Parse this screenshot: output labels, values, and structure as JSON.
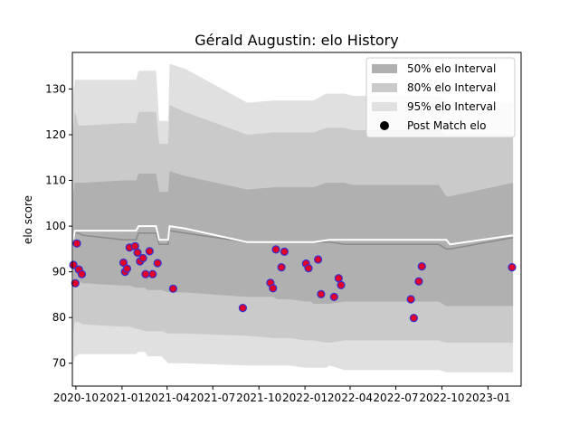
{
  "chart_data": {
    "type": "line",
    "title": "Gérald Augustin: elo History",
    "xlabel": "",
    "ylabel": "elo score",
    "ylim": [
      65,
      138
    ],
    "xlim": [
      "2020-09-24",
      "2023-03-08"
    ],
    "grid": false,
    "legend_position": "top-right",
    "x_ticks": [
      {
        "date": "2020-10-01",
        "label": "2020-10"
      },
      {
        "date": "2021-01-01",
        "label": "2021-01"
      },
      {
        "date": "2021-04-01",
        "label": "2021-04"
      },
      {
        "date": "2021-07-01",
        "label": "2021-07"
      },
      {
        "date": "2021-10-01",
        "label": "2021-10"
      },
      {
        "date": "2022-01-01",
        "label": "2022-01"
      },
      {
        "date": "2022-04-01",
        "label": "2022-04"
      },
      {
        "date": "2022-07-01",
        "label": "2022-07"
      },
      {
        "date": "2022-10-01",
        "label": "2022-10"
      },
      {
        "date": "2023-01-01",
        "label": "2023-01"
      }
    ],
    "y_ticks": [
      70,
      80,
      90,
      100,
      110,
      120,
      130
    ],
    "legend": [
      {
        "label": "50% elo Interval",
        "kind": "band",
        "color": "#b0b0b0"
      },
      {
        "label": "80% elo Interval",
        "kind": "band",
        "color": "#cacaca"
      },
      {
        "label": "95% elo Interval",
        "kind": "band",
        "color": "#e0e0e0"
      },
      {
        "label": "Post Match elo",
        "kind": "marker",
        "color": "#000000"
      }
    ],
    "colors": {
      "band_50": "#b0b0b0",
      "band_80": "#cacaca",
      "band_95": "#e0e0e0",
      "mean_line": "#ffffff",
      "mid_line": "#8a8a8a",
      "point_fill": "#e0002a",
      "point_edge": "#3232d0"
    },
    "bands": {
      "x": [
        "2020-09-26",
        "2020-09-29",
        "2020-10-01",
        "2020-10-06",
        "2020-10-15",
        "2021-01-03",
        "2021-01-05",
        "2021-01-17",
        "2021-01-29",
        "2021-02-03",
        "2021-02-16",
        "2021-02-21",
        "2021-03-10",
        "2021-03-16",
        "2021-03-21",
        "2021-04-03",
        "2021-04-06",
        "2021-05-06",
        "2021-09-08",
        "2021-10-30",
        "2021-11-06",
        "2021-11-25",
        "2021-12-01",
        "2022-01-03",
        "2022-01-13",
        "2022-01-18",
        "2022-02-12",
        "2022-02-19",
        "2022-03-21",
        "2022-04-07",
        "2022-04-09",
        "2022-09-08",
        "2022-09-25",
        "2022-10-10",
        "2022-10-17",
        "2023-02-20"
      ],
      "upper95": [
        129,
        132,
        132,
        132,
        132,
        132,
        132,
        132,
        132,
        134,
        134,
        134,
        134,
        123,
        123,
        123,
        135.5,
        134.5,
        127,
        127.5,
        127.5,
        127.5,
        127.5,
        127.5,
        127.5,
        127.5,
        129,
        129,
        129,
        128.5,
        128.5,
        128.5,
        128.5,
        127,
        127,
        127
      ],
      "upper80": [
        121,
        125,
        124.5,
        122,
        122,
        122.5,
        122.5,
        122.5,
        122.5,
        125,
        125,
        125,
        125,
        118,
        118,
        118,
        126.5,
        125,
        120,
        120.5,
        120.5,
        120.5,
        120.5,
        120.5,
        120.5,
        120.5,
        121.5,
        121.5,
        121.5,
        121,
        121,
        121,
        121,
        120,
        120,
        120
      ],
      "upper50": [
        107,
        109.5,
        109.5,
        109.5,
        109.5,
        110,
        110,
        110,
        110,
        111.5,
        111.5,
        111.5,
        111.5,
        107.5,
        107.5,
        107.5,
        112,
        111,
        108,
        108.5,
        108.5,
        108.5,
        108.5,
        108.5,
        108.5,
        108.5,
        109.5,
        109.5,
        109.5,
        109,
        109,
        109,
        109,
        106.5,
        106.5,
        109.5
      ],
      "mid": [
        96,
        98.5,
        98.5,
        98.5,
        98,
        97,
        97,
        97,
        97,
        98.5,
        98.5,
        98.5,
        98.5,
        96,
        96,
        96,
        99,
        98.5,
        96.5,
        96.5,
        96.5,
        96.5,
        96.5,
        96.5,
        96.5,
        96.5,
        96.5,
        96.5,
        96,
        96,
        96,
        96,
        96,
        95,
        95,
        97.5
      ],
      "lower50": [
        87,
        88,
        88,
        88,
        87.5,
        87,
        87,
        87,
        86.5,
        86.5,
        86.5,
        86,
        86,
        86,
        86,
        85.5,
        85.5,
        85.5,
        84.5,
        84.5,
        84,
        84,
        84,
        83.5,
        83.5,
        83,
        83,
        83,
        83.5,
        83.5,
        83.5,
        83.5,
        83.5,
        82.5,
        82.5,
        82.5
      ],
      "lower80": [
        76.5,
        79,
        79,
        79,
        78.5,
        78,
        78,
        78,
        77.5,
        77.5,
        77,
        77,
        77,
        77,
        77,
        76.5,
        76.5,
        76.5,
        76,
        75.5,
        75.5,
        75.5,
        75.5,
        75,
        75,
        75,
        74.5,
        74.5,
        75,
        75,
        75,
        75,
        75,
        74.5,
        74.5,
        74.5
      ],
      "lower95": [
        70,
        71.5,
        71.5,
        72,
        72,
        72,
        72,
        72,
        72,
        72.5,
        72.5,
        71.5,
        71.5,
        71.5,
        71.5,
        70,
        70,
        70,
        69.5,
        69.5,
        69.5,
        69.5,
        69.5,
        69,
        69,
        69,
        69,
        69.5,
        68.5,
        68.5,
        68.5,
        68.5,
        68.5,
        68,
        68,
        68
      ]
    },
    "mean_line": {
      "x": [
        "2020-09-26",
        "2020-09-29",
        "2020-10-01",
        "2021-01-03",
        "2021-01-29",
        "2021-02-03",
        "2021-02-16",
        "2021-02-21",
        "2021-03-10",
        "2021-03-16",
        "2021-03-21",
        "2021-04-03",
        "2021-04-06",
        "2021-05-06",
        "2021-09-08",
        "2022-01-18",
        "2022-02-19",
        "2022-10-10",
        "2022-10-17",
        "2023-02-20"
      ],
      "y": [
        97,
        99,
        99,
        99,
        99,
        100,
        100,
        100,
        100,
        97,
        97,
        97,
        100,
        99.5,
        96.5,
        96.5,
        97,
        97,
        96,
        98
      ]
    },
    "series": [
      {
        "name": "Post Match elo",
        "points": [
          {
            "x": "2020-09-26",
            "y": 91.5
          },
          {
            "x": "2020-09-30",
            "y": 87.5
          },
          {
            "x": "2020-10-03",
            "y": 96.2
          },
          {
            "x": "2020-10-07",
            "y": 90.5
          },
          {
            "x": "2020-10-13",
            "y": 89.5
          },
          {
            "x": "2021-01-04",
            "y": 92
          },
          {
            "x": "2021-01-07",
            "y": 90
          },
          {
            "x": "2021-01-11",
            "y": 90.7
          },
          {
            "x": "2021-01-16",
            "y": 95.3
          },
          {
            "x": "2021-01-27",
            "y": 95.6
          },
          {
            "x": "2021-02-01",
            "y": 94.2
          },
          {
            "x": "2021-02-06",
            "y": 92.3
          },
          {
            "x": "2021-02-12",
            "y": 93
          },
          {
            "x": "2021-02-17",
            "y": 89.5
          },
          {
            "x": "2021-02-25",
            "y": 94.5
          },
          {
            "x": "2021-03-03",
            "y": 89.5
          },
          {
            "x": "2021-03-13",
            "y": 91.9
          },
          {
            "x": "2021-04-13",
            "y": 86.3
          },
          {
            "x": "2021-08-30",
            "y": 82.1
          },
          {
            "x": "2021-10-24",
            "y": 87.6
          },
          {
            "x": "2021-10-29",
            "y": 86.4
          },
          {
            "x": "2021-11-04",
            "y": 94.9
          },
          {
            "x": "2021-11-15",
            "y": 91
          },
          {
            "x": "2021-11-21",
            "y": 94.4
          },
          {
            "x": "2022-01-03",
            "y": 91.8
          },
          {
            "x": "2022-01-08",
            "y": 90.8
          },
          {
            "x": "2022-01-27",
            "y": 92.7
          },
          {
            "x": "2022-02-02",
            "y": 85.1
          },
          {
            "x": "2022-02-28",
            "y": 84.5
          },
          {
            "x": "2022-03-09",
            "y": 88.6
          },
          {
            "x": "2022-03-14",
            "y": 87.1
          },
          {
            "x": "2022-07-31",
            "y": 84
          },
          {
            "x": "2022-08-06",
            "y": 79.9
          },
          {
            "x": "2022-08-16",
            "y": 87.9
          },
          {
            "x": "2022-08-22",
            "y": 91.2
          },
          {
            "x": "2023-02-18",
            "y": 91
          }
        ]
      }
    ]
  }
}
